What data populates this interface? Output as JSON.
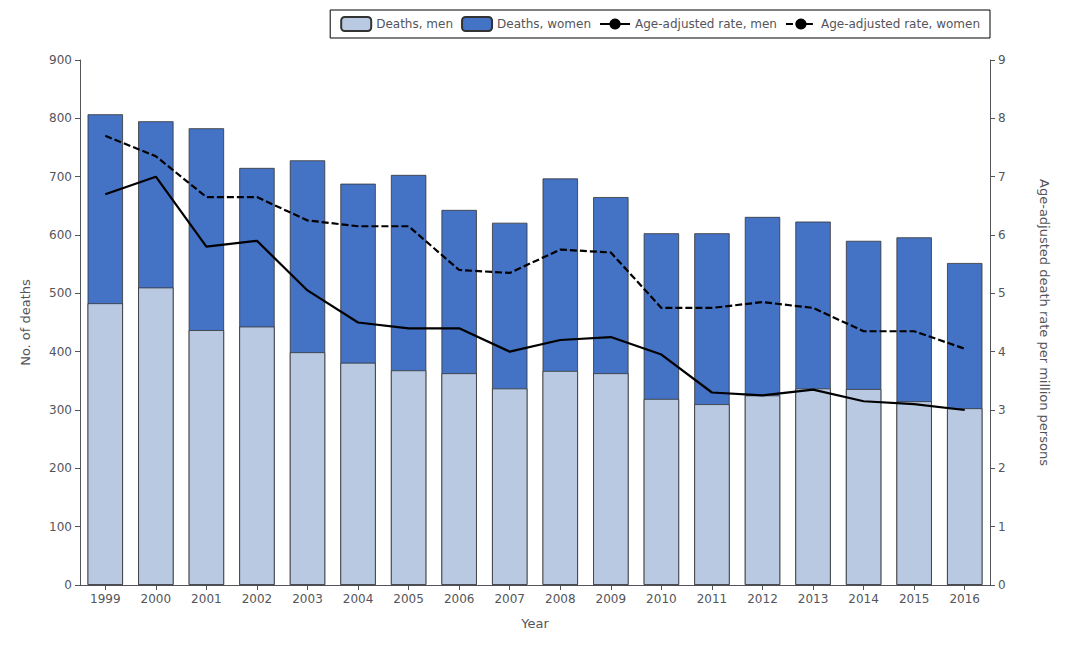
{
  "chart_data": {
    "type": "bar",
    "categories": [
      "1999",
      "2000",
      "2001",
      "2002",
      "2003",
      "2004",
      "2005",
      "2006",
      "2007",
      "2008",
      "2009",
      "2010",
      "2011",
      "2012",
      "2013",
      "2014",
      "2015",
      "2016"
    ],
    "xlabel": "Year",
    "ylabel": "No. of deaths",
    "y2label": "Age-adjusted death rate per million persons",
    "ylim": [
      0,
      900
    ],
    "yticks": [
      0,
      100,
      200,
      300,
      400,
      500,
      600,
      700,
      800,
      900
    ],
    "y2lim": [
      0,
      9
    ],
    "y2ticks": [
      0,
      1,
      2,
      3,
      4,
      5,
      6,
      7,
      8,
      9
    ],
    "grid": false,
    "legend": "upper right",
    "series": [
      {
        "name": "Deaths, men",
        "type": "bar",
        "color": "#b8c9e1",
        "values": [
          483,
          510,
          437,
          443,
          399,
          381,
          368,
          363,
          337,
          367,
          363,
          319,
          310,
          325,
          337,
          336,
          315,
          303
        ]
      },
      {
        "name": "Deaths, women",
        "type": "bar",
        "color": "#4472c4",
        "values": [
          807,
          795,
          783,
          715,
          728,
          688,
          703,
          643,
          621,
          697,
          665,
          603,
          603,
          631,
          623,
          590,
          596,
          552
        ]
      },
      {
        "name": "Age-adjusted rate, men",
        "type": "line",
        "axis": "y2",
        "color": "black",
        "line_style": "solid",
        "values": [
          6.7,
          7.0,
          5.8,
          5.9,
          5.05,
          4.5,
          4.4,
          4.4,
          4.0,
          4.2,
          4.25,
          3.95,
          3.3,
          3.25,
          3.35,
          3.15,
          3.1,
          3.0
        ]
      },
      {
        "name": "Age-adjusted rate, women",
        "type": "line",
        "axis": "y2",
        "color": "black",
        "line_style": "dashed",
        "values": [
          7.7,
          7.35,
          6.65,
          6.65,
          6.25,
          6.15,
          6.15,
          5.4,
          5.35,
          5.75,
          5.7,
          4.75,
          4.75,
          4.85,
          4.75,
          4.35,
          4.35,
          4.05
        ]
      }
    ]
  }
}
